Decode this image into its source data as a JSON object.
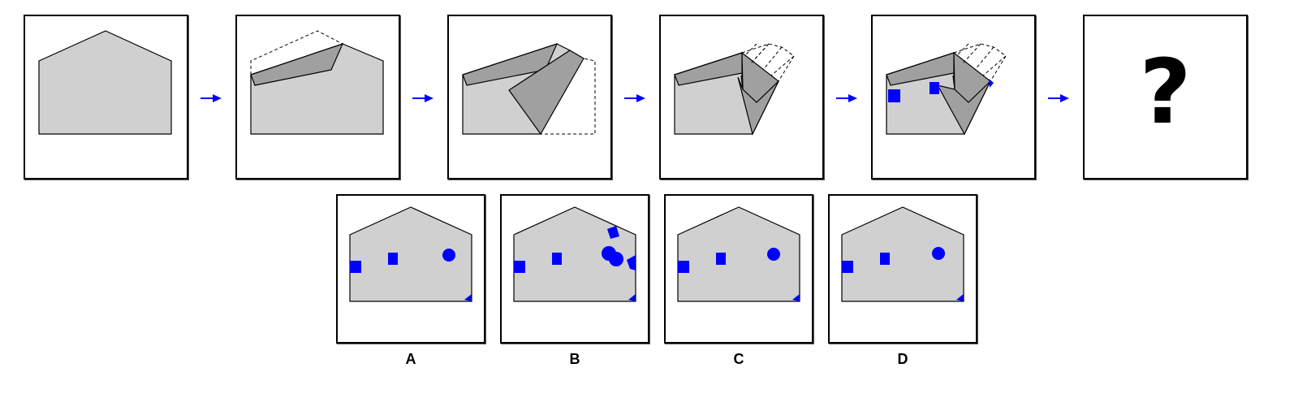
{
  "question_mark": "?",
  "options": [
    {
      "label": "A"
    },
    {
      "label": "B"
    },
    {
      "label": "C"
    },
    {
      "label": "D"
    }
  ],
  "colors": {
    "paper": "#d0d0d0",
    "fold": "#a0a0a0",
    "hole": "#0000ff",
    "arrow": "#0000ff"
  },
  "icons": [
    "right-arrow-icon",
    "question-mark-icon"
  ]
}
